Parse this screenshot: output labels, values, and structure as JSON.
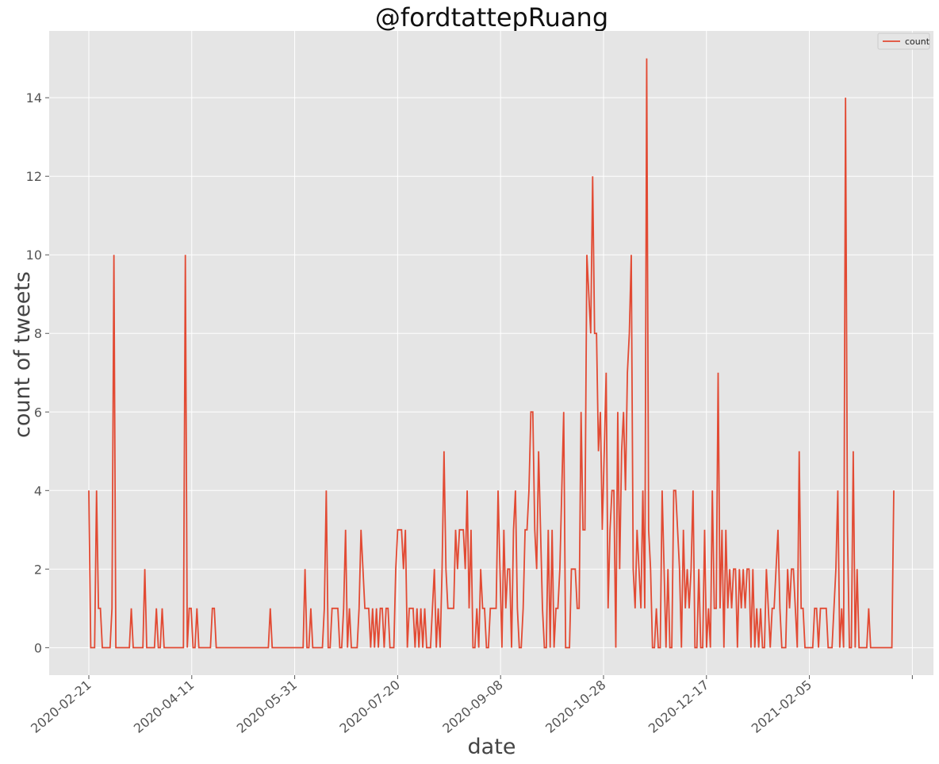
{
  "chart_data": {
    "type": "line",
    "title": "@fordtattepRuang",
    "xlabel": "date",
    "ylabel": "count of tweets",
    "x_start": "2020-02-21",
    "x_end": "2021-03-18",
    "xticks": [
      "2020-02-21",
      "2020-04-11",
      "2020-05-31",
      "2020-07-20",
      "2020-09-08",
      "2020-10-28",
      "2020-12-17",
      "2021-02-05"
    ],
    "yticks": [
      "0",
      "2",
      "4",
      "6",
      "8",
      "10",
      "12",
      "14"
    ],
    "ylim": [
      -0.7,
      15.7
    ],
    "grid": true,
    "legend": "top-right",
    "colors": {
      "line": "#E24A33",
      "background": "#E5E5E5",
      "grid": "#FFFFFF"
    },
    "series": [
      {
        "name": "count",
        "values": [
          4,
          0,
          0,
          0,
          4,
          1,
          1,
          0,
          0,
          0,
          0,
          0,
          1,
          10,
          0,
          0,
          0,
          0,
          0,
          0,
          0,
          0,
          1,
          0,
          0,
          0,
          0,
          0,
          0,
          2,
          0,
          0,
          0,
          0,
          0,
          1,
          0,
          0,
          1,
          0,
          0,
          0,
          0,
          0,
          0,
          0,
          0,
          0,
          0,
          0,
          10,
          0,
          1,
          1,
          0,
          0,
          1,
          0,
          0,
          0,
          0,
          0,
          0,
          0,
          1,
          1,
          0,
          0,
          0,
          0,
          0,
          0,
          0,
          0,
          0,
          0,
          0,
          0,
          0,
          0,
          0,
          0,
          0,
          0,
          0,
          0,
          0,
          0,
          0,
          0,
          0,
          0,
          0,
          0,
          1,
          0,
          0,
          0,
          0,
          0,
          0,
          0,
          0,
          0,
          0,
          0,
          0,
          0,
          0,
          0,
          0,
          0,
          2,
          0,
          0,
          1,
          0,
          0,
          0,
          0,
          0,
          0,
          1,
          4,
          0,
          0,
          1,
          1,
          1,
          1,
          0,
          0,
          1,
          3,
          0,
          1,
          0,
          0,
          0,
          0,
          1,
          3,
          2,
          1,
          1,
          1,
          0,
          1,
          0,
          1,
          0,
          1,
          1,
          0,
          1,
          1,
          0,
          0,
          0,
          2,
          3,
          3,
          3,
          2,
          3,
          0,
          1,
          1,
          1,
          0,
          1,
          0,
          1,
          0,
          1,
          0,
          0,
          0,
          1,
          2,
          0,
          1,
          0,
          2,
          5,
          2,
          1,
          1,
          1,
          1,
          3,
          2,
          3,
          3,
          3,
          2,
          4,
          1,
          3,
          0,
          0,
          1,
          0,
          2,
          1,
          1,
          0,
          0,
          1,
          1,
          1,
          1,
          4,
          2,
          0,
          3,
          1,
          2,
          2,
          0,
          3,
          4,
          1,
          0,
          0,
          1,
          3,
          3,
          4,
          6,
          6,
          3,
          2,
          5,
          3,
          1,
          0,
          0,
          3,
          0,
          3,
          0,
          1,
          1,
          2,
          4,
          6,
          0,
          0,
          0,
          2,
          2,
          2,
          1,
          1,
          6,
          3,
          3,
          10,
          9,
          8,
          12,
          8,
          8,
          5,
          6,
          3,
          5,
          7,
          1,
          3,
          4,
          4,
          0,
          6,
          2,
          5,
          6,
          4,
          7,
          8,
          10,
          2,
          1,
          3,
          2,
          1,
          4,
          1,
          15,
          3,
          2,
          0,
          0,
          1,
          0,
          0,
          4,
          2,
          0,
          2,
          0,
          0,
          4,
          4,
          3,
          2,
          0,
          3,
          1,
          2,
          1,
          2,
          4,
          0,
          0,
          2,
          0,
          0,
          3,
          0,
          1,
          0,
          4,
          1,
          1,
          7,
          1,
          3,
          0,
          3,
          1,
          2,
          1,
          2,
          2,
          0,
          2,
          1,
          2,
          1,
          2,
          2,
          0,
          2,
          0,
          1,
          0,
          1,
          0,
          0,
          2,
          1,
          0,
          1,
          1,
          2,
          3,
          1,
          0,
          0,
          0,
          2,
          1,
          2,
          2,
          1,
          0,
          5,
          1,
          1,
          0,
          0,
          0,
          0,
          0,
          1,
          1,
          0,
          1,
          1,
          1,
          1,
          0,
          0,
          0,
          1,
          2,
          4,
          0,
          1,
          0,
          14,
          3,
          0,
          0,
          5,
          0,
          2,
          0,
          0,
          0,
          0,
          0,
          1,
          0,
          0,
          0,
          0,
          0,
          0,
          0,
          0,
          0,
          0,
          0,
          0,
          4
        ]
      }
    ]
  }
}
